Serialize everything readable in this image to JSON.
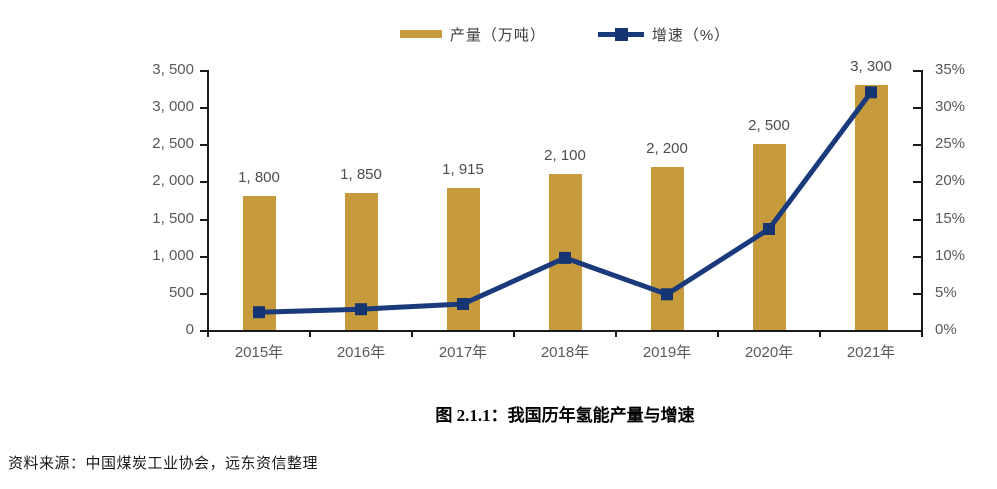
{
  "page": {
    "title": "图 2.1.1：我国历年氢能产量与增速",
    "source": "资料来源：中国煤炭工业协会，远东资信整理"
  },
  "legend": {
    "items": [
      {
        "label": "产量（万吨）",
        "type": "bar"
      },
      {
        "label": "增速（%）",
        "type": "line"
      }
    ],
    "position": "top"
  },
  "colors": {
    "bar": "#C79B3C",
    "line": "#1A3A7C",
    "marker": "#153472",
    "axis": "#1a1a1a",
    "tick_text": "#595959",
    "data_label_text": "#4d4d4d"
  },
  "chart_data": {
    "type": "bar+line combo",
    "title": "图 2.1.1：我国历年氢能产量与增速",
    "categories": [
      "2015年",
      "2016年",
      "2017年",
      "2018年",
      "2019年",
      "2020年",
      "2021年"
    ],
    "series": [
      {
        "name": "产量（万吨）",
        "type": "bar",
        "axis": "left",
        "values": [
          1800,
          1850,
          1915,
          2100,
          2200,
          2500,
          3300
        ],
        "data_labels": [
          "1, 800",
          "1, 850",
          "1, 915",
          "2, 100",
          "2, 200",
          "2, 500",
          "3, 300"
        ]
      },
      {
        "name": "增速（%）",
        "type": "line",
        "axis": "right",
        "values": [
          2.4,
          2.8,
          3.5,
          9.7,
          4.8,
          13.6,
          32.0
        ]
      }
    ],
    "left_axis": {
      "min": 0,
      "max": 3500,
      "step": 500,
      "tick_labels": [
        "0",
        "500",
        "1, 000",
        "1, 500",
        "2, 000",
        "2, 500",
        "3, 000",
        "3, 500"
      ]
    },
    "right_axis": {
      "min": 0,
      "max": 35,
      "step": 5,
      "tick_labels": [
        "0%",
        "5%",
        "10%",
        "15%",
        "20%",
        "25%",
        "30%",
        "35%"
      ]
    },
    "grid": false,
    "legend_position": "top"
  }
}
